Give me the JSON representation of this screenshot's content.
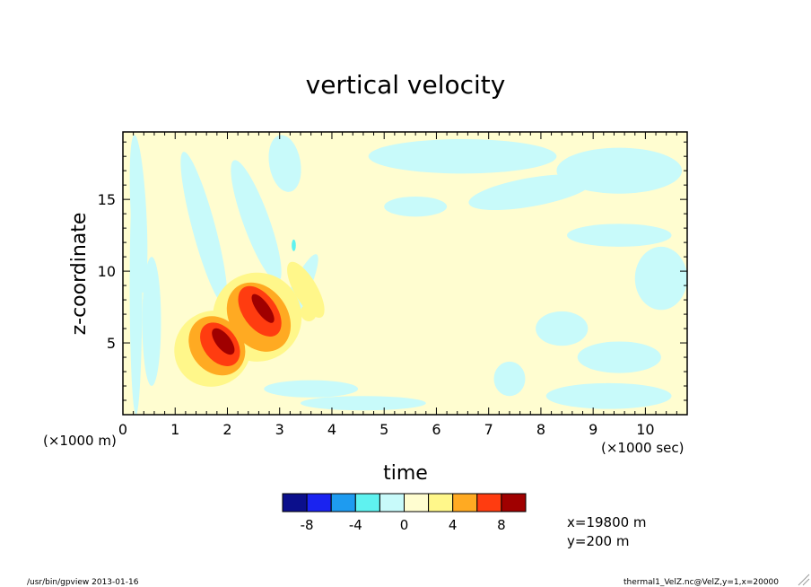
{
  "chart_data": {
    "type": "heatmap",
    "title": "vertical velocity",
    "xlabel": "time",
    "ylabel": "z-coordinate",
    "x_unit_label": "(×1000 sec)",
    "y_unit_label": "(×1000 m)",
    "xlim": [
      0,
      10.8
    ],
    "ylim": [
      0,
      19.7
    ],
    "x_ticks": [
      0,
      1,
      2,
      3,
      4,
      5,
      6,
      7,
      8,
      9,
      10
    ],
    "y_ticks": [
      5,
      10,
      15
    ],
    "colorbar": {
      "levels": [
        -10,
        -8,
        -6,
        -4,
        -2,
        0,
        2,
        4,
        6,
        8,
        10
      ],
      "tick_labels": [
        "-8",
        "-4",
        "0",
        "4",
        "8"
      ],
      "tick_values": [
        -8,
        -4,
        0,
        4,
        8
      ],
      "colors": [
        "#0b0f8c",
        "#1a23f0",
        "#1e9bf0",
        "#5ff2f0",
        "#c8fafa",
        "#fffdd0",
        "#fff78a",
        "#ffaa22",
        "#ff3c10",
        "#a00000"
      ]
    },
    "annotations": [
      "x=19800 m",
      "y=200 m"
    ]
  },
  "footer": {
    "left": "/usr/bin/gpview  2013-01-16",
    "right": "thermal1_VelZ.nc@VelZ,y=1,x=20000"
  }
}
